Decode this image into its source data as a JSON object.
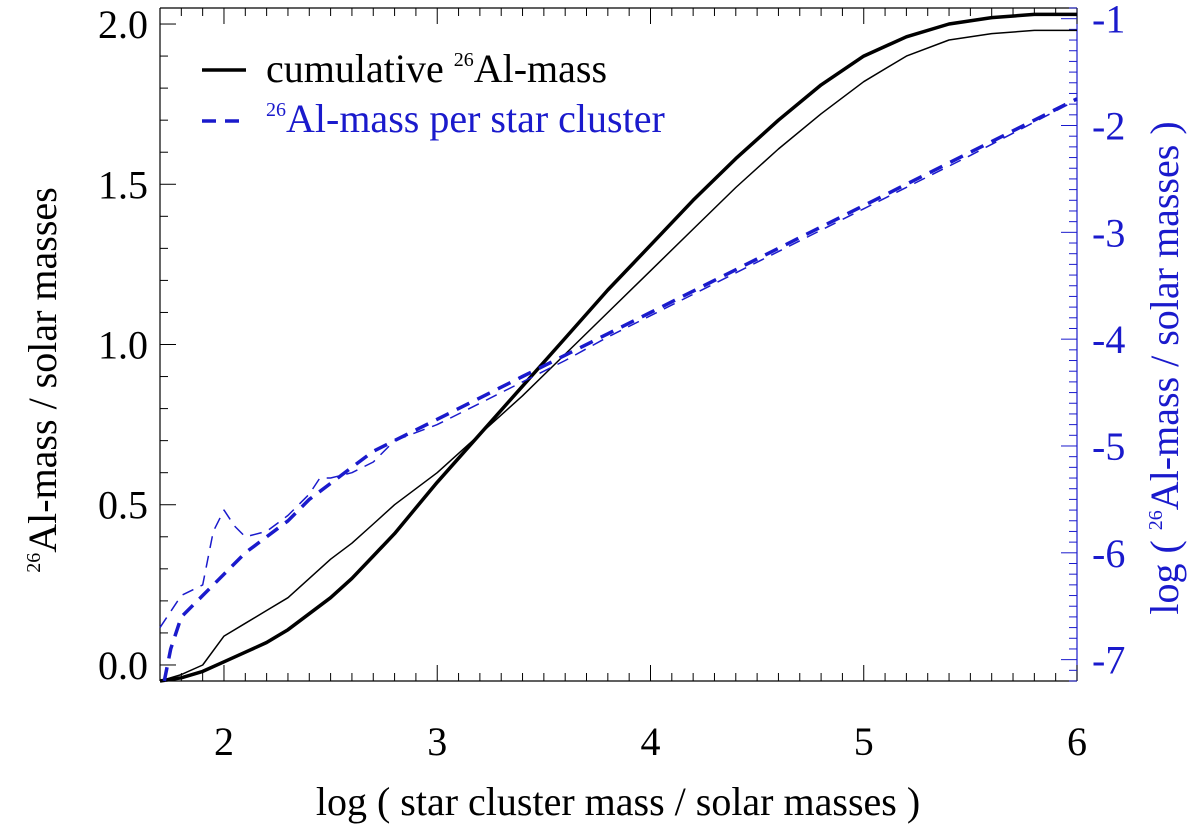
{
  "chart_data": {
    "type": "line",
    "xlabel": "log ( star cluster mass / solar masses )",
    "ylabel_left": {
      "sup": "26",
      "text": "Al-mass / solar masses"
    },
    "ylabel_right": {
      "pre": "log ( ",
      "sup": "26",
      "text": "Al-mass / solar masses )"
    },
    "xlim": [
      1.7,
      6.0
    ],
    "ylim_left": [
      -0.05,
      2.05
    ],
    "ylim_right": [
      -7.2,
      -0.9
    ],
    "x_ticks": [
      "2",
      "3",
      "4",
      "5",
      "6"
    ],
    "y_left_ticks": [
      "0.0",
      "0.5",
      "1.0",
      "1.5",
      "2.0"
    ],
    "y_right_ticks": [
      "-1",
      "-2",
      "-3",
      "-4",
      "-5",
      "-6",
      "-7"
    ],
    "legend": [
      {
        "label": "cumulative",
        "sup": "26",
        "rest": "Al-mass",
        "style": "solid",
        "color": "#000000"
      },
      {
        "label": "",
        "sup": "26",
        "rest": "Al-mass per star cluster",
        "style": "dashed",
        "color": "#1a1acc"
      }
    ],
    "series": [
      {
        "axis": "left",
        "style": "solid",
        "weight": "thick",
        "color": "#000000",
        "x": [
          1.7,
          1.8,
          1.9,
          2.0,
          2.1,
          2.2,
          2.3,
          2.4,
          2.5,
          2.6,
          2.7,
          2.8,
          2.9,
          3.0,
          3.2,
          3.4,
          3.6,
          3.8,
          4.0,
          4.2,
          4.4,
          4.6,
          4.8,
          5.0,
          5.2,
          5.4,
          5.6,
          5.8,
          6.0
        ],
        "y": [
          -0.05,
          -0.04,
          -0.02,
          0.01,
          0.04,
          0.07,
          0.11,
          0.16,
          0.21,
          0.27,
          0.34,
          0.41,
          0.49,
          0.57,
          0.72,
          0.87,
          1.02,
          1.17,
          1.31,
          1.45,
          1.58,
          1.7,
          1.81,
          1.9,
          1.96,
          2.0,
          2.02,
          2.03,
          2.03
        ]
      },
      {
        "axis": "left",
        "style": "solid",
        "weight": "thin",
        "color": "#000000",
        "x": [
          1.7,
          1.8,
          1.9,
          2.0,
          2.1,
          2.2,
          2.3,
          2.4,
          2.5,
          2.6,
          2.7,
          2.8,
          2.9,
          3.0,
          3.2,
          3.4,
          3.6,
          3.8,
          4.0,
          4.2,
          4.4,
          4.6,
          4.8,
          5.0,
          5.2,
          5.4,
          5.6,
          5.8,
          6.0
        ],
        "y": [
          -0.05,
          -0.03,
          0.0,
          0.09,
          0.13,
          0.17,
          0.21,
          0.27,
          0.33,
          0.38,
          0.44,
          0.5,
          0.55,
          0.6,
          0.72,
          0.84,
          0.97,
          1.1,
          1.23,
          1.36,
          1.49,
          1.61,
          1.72,
          1.82,
          1.9,
          1.95,
          1.97,
          1.98,
          1.98
        ]
      },
      {
        "axis": "right",
        "style": "dashed",
        "weight": "thick",
        "color": "#1a1acc",
        "x": [
          1.72,
          1.75,
          1.8,
          1.9,
          2.0,
          2.1,
          2.2,
          2.3,
          2.4,
          2.5,
          2.6,
          2.7,
          2.8,
          3.0,
          3.2,
          3.4,
          3.6,
          3.8,
          4.0,
          4.5,
          5.0,
          5.5,
          6.0
        ],
        "y": [
          -7.2,
          -6.9,
          -6.6,
          -6.4,
          -6.2,
          -6.0,
          -5.85,
          -5.7,
          -5.5,
          -5.35,
          -5.2,
          -5.05,
          -4.95,
          -4.75,
          -4.55,
          -4.35,
          -4.15,
          -3.95,
          -3.75,
          -3.25,
          -2.75,
          -2.25,
          -1.75
        ]
      },
      {
        "axis": "right",
        "style": "dashed",
        "weight": "thin",
        "color": "#1a1acc",
        "x": [
          1.7,
          1.8,
          1.9,
          1.95,
          2.0,
          2.05,
          2.1,
          2.2,
          2.3,
          2.4,
          2.45,
          2.5,
          2.6,
          2.7,
          2.8,
          3.0,
          3.2,
          3.4,
          3.6,
          3.8,
          4.0,
          4.5,
          5.0,
          5.5,
          6.0
        ],
        "y": [
          -6.7,
          -6.4,
          -6.3,
          -5.8,
          -5.6,
          -5.75,
          -5.85,
          -5.8,
          -5.65,
          -5.45,
          -5.3,
          -5.3,
          -5.25,
          -5.15,
          -4.95,
          -4.8,
          -4.6,
          -4.4,
          -4.2,
          -3.98,
          -3.78,
          -3.28,
          -2.78,
          -2.28,
          -1.76
        ]
      }
    ]
  }
}
